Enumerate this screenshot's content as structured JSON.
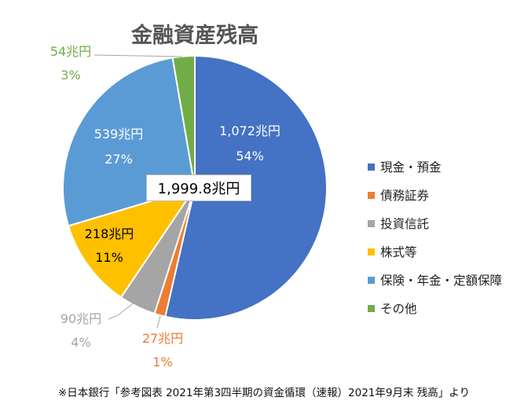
{
  "chart_data": {
    "type": "pie",
    "title": "金融資産残高",
    "total_label": "1,999.8兆円",
    "slices": [
      {
        "name": "現金・預金",
        "value": 1072,
        "value_label": "1,072兆円",
        "percent_label": "54%",
        "color": "#4472C4"
      },
      {
        "name": "債務証券",
        "value": 27,
        "value_label": "27兆円",
        "percent_label": "1%",
        "color": "#ED7D31"
      },
      {
        "name": "投資信託",
        "value": 90,
        "value_label": "90兆円",
        "percent_label": "4%",
        "color": "#A5A5A5"
      },
      {
        "name": "株式等",
        "value": 218,
        "value_label": "218兆円",
        "percent_label": "11%",
        "color": "#FFC000"
      },
      {
        "name": "保険・年金・定額保障",
        "value": 539,
        "value_label": "539兆円",
        "percent_label": "27%",
        "color": "#5B9BD5"
      },
      {
        "name": "その他",
        "value": 54,
        "value_label": "54兆円",
        "percent_label": "3%",
        "color": "#70AD47"
      }
    ],
    "legend_position": "right",
    "start_angle": "12 o'clock, clockwise"
  },
  "footnote": "※日本銀行「参考図表 2021年第3四半期の資金循環（速報）2021年9月末 残高」より"
}
